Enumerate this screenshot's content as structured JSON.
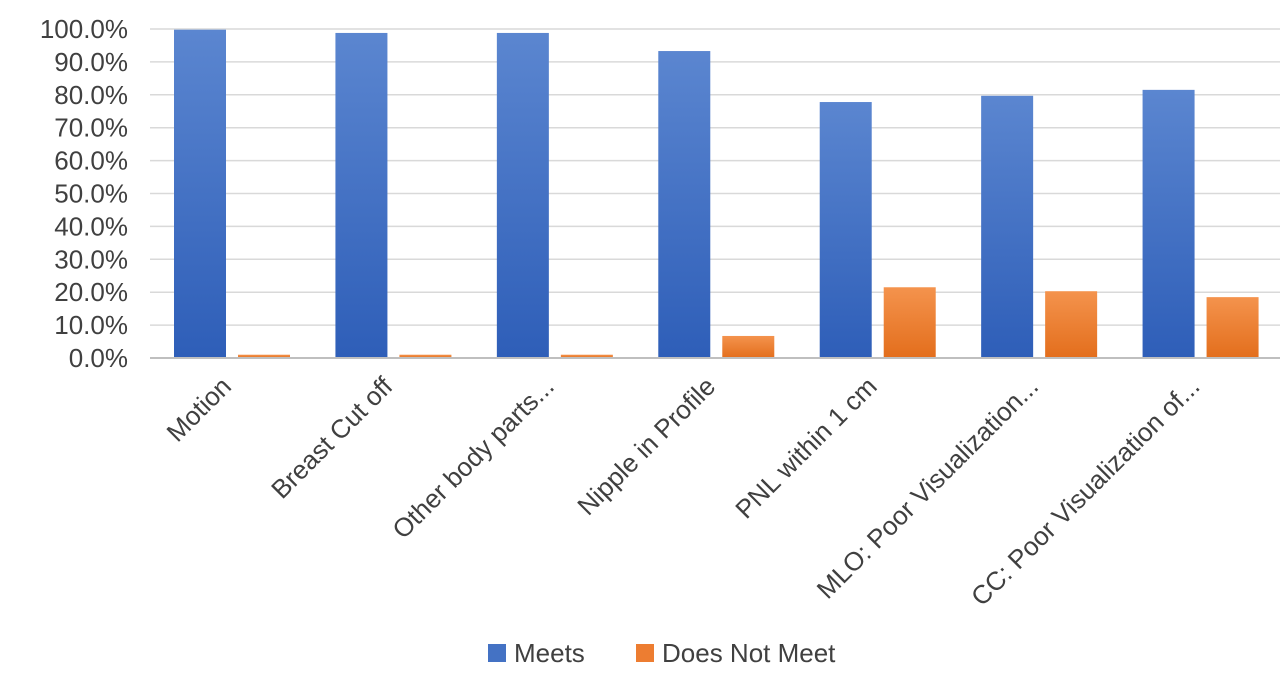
{
  "chart_data": {
    "type": "bar",
    "categories": [
      "Motion",
      "Breast Cut off",
      "Other body parts...",
      "Nipple in Profile",
      "PNL within 1 cm",
      "MLO: Poor Visualization...",
      "CC: Poor Visualization of..."
    ],
    "series": [
      {
        "name": "Meets",
        "color": "#4472C4",
        "values": [
          99.8,
          98.8,
          98.8,
          93.3,
          77.8,
          79.7,
          81.5
        ]
      },
      {
        "name": "Does Not Meet",
        "color": "#ED7D31",
        "values": [
          1.0,
          1.0,
          1.0,
          6.7,
          21.5,
          20.3,
          18.5
        ]
      }
    ],
    "ylim": [
      0,
      100
    ],
    "yticks": [
      "0.0%",
      "10.0%",
      "20.0%",
      "30.0%",
      "40.0%",
      "50.0%",
      "60.0%",
      "70.0%",
      "80.0%",
      "90.0%",
      "100.0%"
    ],
    "grid": true,
    "legend_position": "bottom",
    "title": "",
    "xlabel": "",
    "ylabel": ""
  }
}
